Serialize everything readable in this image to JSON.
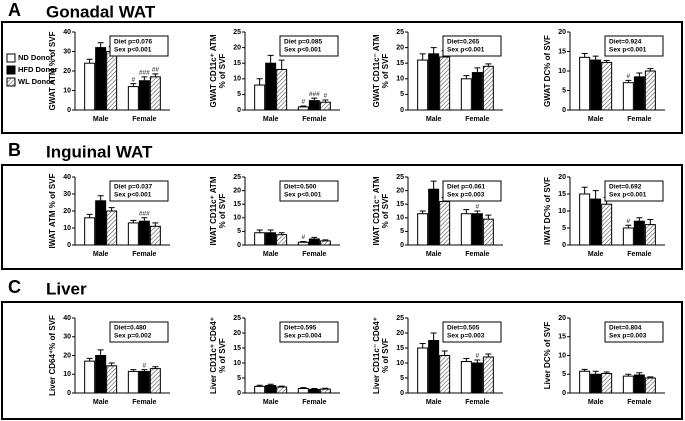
{
  "panels": [
    {
      "label": "A",
      "title": "Gonadal WAT"
    },
    {
      "label": "B",
      "title": "Inguinal WAT"
    },
    {
      "label": "C",
      "title": "Liver"
    }
  ],
  "chart_data": [
    {
      "type": "bar",
      "ylabel": [
        "GWAT ATM % of SVF"
      ],
      "categories": [
        "Male",
        "Female"
      ],
      "ylim": [
        0,
        40
      ],
      "yticks": [
        0,
        10,
        20,
        30,
        40
      ],
      "annotations": [
        "Diet p=0.076",
        "Sex p<0.001"
      ],
      "series": [
        {
          "name": "ND Donor",
          "color": "#ffffff",
          "values": [
            24,
            12
          ],
          "errors": [
            2,
            1.5
          ],
          "markers": [
            null,
            "#"
          ]
        },
        {
          "name": "HFD Donor",
          "color": "#000000",
          "values": [
            32,
            15
          ],
          "errors": [
            2.5,
            2
          ],
          "markers": [
            null,
            "###"
          ]
        },
        {
          "name": "WL Donor",
          "color": "#ffffff",
          "hatch": true,
          "values": [
            30,
            17
          ],
          "errors": [
            2.5,
            1.5
          ],
          "markers": [
            null,
            "##"
          ]
        }
      ]
    },
    {
      "type": "bar",
      "ylabel": [
        "GWAT CD11c⁺ ATM",
        "% of SVF"
      ],
      "categories": [
        "Male",
        "Female"
      ],
      "ylim": [
        0,
        25
      ],
      "yticks": [
        0,
        5,
        10,
        15,
        20,
        25
      ],
      "annotations": [
        "Diet p=0.085",
        "Sex p<0.001"
      ],
      "series": [
        {
          "color": "#ffffff",
          "values": [
            8,
            1
          ],
          "errors": [
            2,
            0.3
          ],
          "markers": [
            null,
            "#"
          ]
        },
        {
          "color": "#000000",
          "values": [
            15,
            3
          ],
          "errors": [
            2.5,
            0.8
          ],
          "markers": [
            null,
            "###"
          ]
        },
        {
          "color": "#ffffff",
          "hatch": true,
          "values": [
            13,
            2.5
          ],
          "errors": [
            3,
            0.7
          ],
          "markers": [
            null,
            "#"
          ]
        }
      ]
    },
    {
      "type": "bar",
      "ylabel": [
        "GWAT CD11c⁻ ATM",
        "% of SVF"
      ],
      "categories": [
        "Male",
        "Female"
      ],
      "ylim": [
        0,
        25
      ],
      "yticks": [
        0,
        5,
        10,
        15,
        20,
        25
      ],
      "annotations": [
        "Diet=0.265",
        "Sex p<0.001"
      ],
      "series": [
        {
          "color": "#ffffff",
          "values": [
            16,
            10
          ],
          "errors": [
            2,
            1
          ]
        },
        {
          "color": "#000000",
          "values": [
            18,
            12
          ],
          "errors": [
            2,
            1.5
          ]
        },
        {
          "color": "#ffffff",
          "hatch": true,
          "values": [
            17,
            14
          ],
          "errors": [
            2,
            0.8
          ]
        }
      ]
    },
    {
      "type": "bar",
      "ylabel": [
        "GWAT DC% of SVF"
      ],
      "categories": [
        "Male",
        "Female"
      ],
      "ylim": [
        0,
        20
      ],
      "yticks": [
        0,
        5,
        10,
        15,
        20
      ],
      "annotations": [
        "Diet=0.924",
        "Sex p<0.001"
      ],
      "series": [
        {
          "color": "#ffffff",
          "values": [
            13.5,
            7
          ],
          "errors": [
            1,
            0.6
          ],
          "markers": [
            null,
            "#"
          ]
        },
        {
          "color": "#000000",
          "values": [
            12.8,
            8.5
          ],
          "errors": [
            1,
            1
          ]
        },
        {
          "color": "#ffffff",
          "hatch": true,
          "values": [
            12.2,
            10
          ],
          "errors": [
            0.5,
            0.6
          ]
        }
      ]
    },
    {
      "type": "bar",
      "ylabel": [
        "IWAT ATM % of SVF"
      ],
      "categories": [
        "Male",
        "Female"
      ],
      "ylim": [
        0,
        40
      ],
      "yticks": [
        0,
        10,
        20,
        30,
        40
      ],
      "annotations": [
        "Diet p=0.037",
        "Sex p<0.001"
      ],
      "series": [
        {
          "color": "#ffffff",
          "values": [
            16,
            13
          ],
          "errors": [
            2,
            1.5
          ]
        },
        {
          "color": "#000000",
          "values": [
            26,
            14
          ],
          "errors": [
            3,
            2
          ],
          "markers": [
            null,
            "###"
          ]
        },
        {
          "color": "#ffffff",
          "hatch": true,
          "values": [
            20,
            11
          ],
          "errors": [
            2,
            2
          ]
        }
      ]
    },
    {
      "type": "bar",
      "ylabel": [
        "IWAT CD11c⁺ ATM",
        "% of SVF"
      ],
      "categories": [
        "Male",
        "Female"
      ],
      "ylim": [
        0,
        25
      ],
      "yticks": [
        0,
        5,
        10,
        15,
        20,
        25
      ],
      "annotations": [
        "Diet=0.500",
        "Sex p<0.001"
      ],
      "series": [
        {
          "color": "#ffffff",
          "values": [
            4.5,
            1
          ],
          "errors": [
            1,
            0.3
          ],
          "markers": [
            null,
            "#"
          ]
        },
        {
          "color": "#000000",
          "values": [
            4.5,
            2.2
          ],
          "errors": [
            1,
            0.6
          ]
        },
        {
          "color": "#ffffff",
          "hatch": true,
          "values": [
            3.8,
            1.5
          ],
          "errors": [
            0.7,
            0.4
          ]
        }
      ]
    },
    {
      "type": "bar",
      "ylabel": [
        "IWAT CD11c⁻ ATM",
        "% of SVF"
      ],
      "categories": [
        "Male",
        "Female"
      ],
      "ylim": [
        0,
        25
      ],
      "yticks": [
        0,
        5,
        10,
        15,
        20,
        25
      ],
      "annotations": [
        "Diet p=0.061",
        "Sex p=0.003"
      ],
      "series": [
        {
          "color": "#ffffff",
          "values": [
            11.5,
            11.5
          ],
          "errors": [
            1,
            1.5
          ]
        },
        {
          "color": "#000000",
          "values": [
            20.5,
            11.5
          ],
          "errors": [
            3,
            1
          ],
          "markers": [
            null,
            "#"
          ]
        },
        {
          "color": "#ffffff",
          "hatch": true,
          "values": [
            16,
            9.5
          ],
          "errors": [
            1.5,
            1.5
          ]
        }
      ]
    },
    {
      "type": "bar",
      "ylabel": [
        "IWAT DC% of SVF"
      ],
      "categories": [
        "Male",
        "Female"
      ],
      "ylim": [
        0,
        20
      ],
      "yticks": [
        0,
        5,
        10,
        15,
        20
      ],
      "annotations": [
        "Diet=0.692",
        "Sex p<0.001"
      ],
      "series": [
        {
          "color": "#ffffff",
          "values": [
            15,
            5
          ],
          "errors": [
            2,
            0.8
          ],
          "markers": [
            null,
            "#"
          ]
        },
        {
          "color": "#000000",
          "values": [
            13.5,
            7
          ],
          "errors": [
            2.5,
            1
          ]
        },
        {
          "color": "#ffffff",
          "hatch": true,
          "values": [
            12,
            6
          ],
          "errors": [
            2,
            1.5
          ]
        }
      ]
    },
    {
      "type": "bar",
      "ylabel": [
        "Liver CD64⁺% of SVF"
      ],
      "categories": [
        "Male",
        "Female"
      ],
      "ylim": [
        0,
        40
      ],
      "yticks": [
        0,
        10,
        20,
        30,
        40
      ],
      "annotations": [
        "Diet=0.480",
        "Sex p=0.002"
      ],
      "series": [
        {
          "color": "#ffffff",
          "values": [
            17,
            11.5
          ],
          "errors": [
            1.5,
            1
          ]
        },
        {
          "color": "#000000",
          "values": [
            20,
            11.5
          ],
          "errors": [
            3,
            1
          ],
          "markers": [
            null,
            "#"
          ]
        },
        {
          "color": "#ffffff",
          "hatch": true,
          "values": [
            14.5,
            13
          ],
          "errors": [
            1.5,
            1
          ]
        }
      ]
    },
    {
      "type": "bar",
      "ylabel": [
        "Liver CD11c⁺ CD64⁺",
        "% of SVF"
      ],
      "categories": [
        "Male",
        "Female"
      ],
      "ylim": [
        0,
        25
      ],
      "yticks": [
        0,
        5,
        10,
        15,
        20,
        25
      ],
      "annotations": [
        "Diet=0.595",
        "Sex p=0.004"
      ],
      "series": [
        {
          "color": "#ffffff",
          "values": [
            2.2,
            1.5
          ],
          "errors": [
            0.4,
            0.3
          ]
        },
        {
          "color": "#000000",
          "values": [
            2.5,
            1.2
          ],
          "errors": [
            0.4,
            0.3
          ]
        },
        {
          "color": "#ffffff",
          "hatch": true,
          "values": [
            2,
            1.3
          ],
          "errors": [
            0.3,
            0.3
          ]
        }
      ]
    },
    {
      "type": "bar",
      "ylabel": [
        "Liver CD11c⁻ CD64⁺",
        "% of SVF"
      ],
      "categories": [
        "Male",
        "Female"
      ],
      "ylim": [
        0,
        25
      ],
      "yticks": [
        0,
        5,
        10,
        15,
        20,
        25
      ],
      "annotations": [
        "Diet=0.505",
        "Sex p=0.003"
      ],
      "series": [
        {
          "color": "#ffffff",
          "values": [
            15,
            10.5
          ],
          "errors": [
            1.5,
            1
          ]
        },
        {
          "color": "#000000",
          "values": [
            17.5,
            10
          ],
          "errors": [
            2.5,
            1
          ],
          "markers": [
            null,
            "#"
          ]
        },
        {
          "color": "#ffffff",
          "hatch": true,
          "values": [
            12.5,
            12
          ],
          "errors": [
            1.5,
            1
          ]
        }
      ]
    },
    {
      "type": "bar",
      "ylabel": [
        "Liver DC% of SVF"
      ],
      "categories": [
        "Male",
        "Female"
      ],
      "ylim": [
        0,
        20
      ],
      "yticks": [
        0,
        5,
        10,
        15,
        20
      ],
      "annotations": [
        "Diet=0.804",
        "Sex p=0.003"
      ],
      "series": [
        {
          "color": "#ffffff",
          "values": [
            5.8,
            4.5
          ],
          "errors": [
            0.5,
            0.5
          ]
        },
        {
          "color": "#000000",
          "values": [
            5,
            4.8
          ],
          "errors": [
            0.8,
            0.6
          ]
        },
        {
          "color": "#ffffff",
          "hatch": true,
          "values": [
            5.2,
            4
          ],
          "errors": [
            0.4,
            0.3
          ]
        }
      ]
    }
  ]
}
